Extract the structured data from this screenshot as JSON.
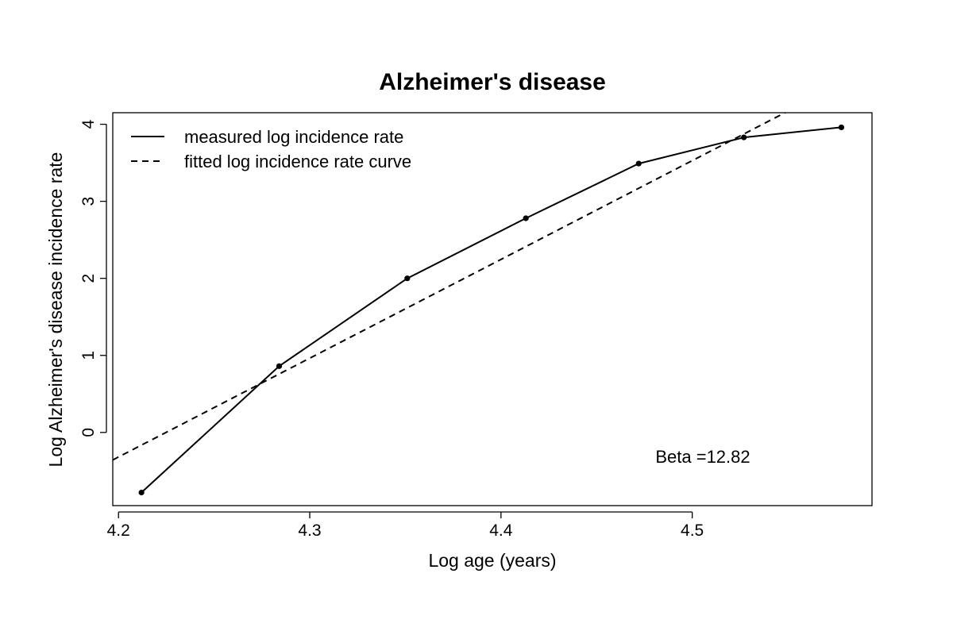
{
  "chart_data": {
    "type": "line",
    "title": "Alzheimer's disease",
    "xlabel": "Log age (years)",
    "ylabel": "Log Alzheimer's disease incidence rate",
    "xlim": [
      4.197,
      4.594
    ],
    "ylim": [
      -0.95,
      4.15
    ],
    "xticks": [
      4.2,
      4.3,
      4.4,
      4.5
    ],
    "xtick_labels": [
      "4.2",
      "4.3",
      "4.4",
      "4.5"
    ],
    "yticks": [
      0,
      1,
      2,
      3,
      4
    ],
    "ytick_labels": [
      "0",
      "1",
      "2",
      "3",
      "4"
    ],
    "grid": false,
    "legend_position": "top-left",
    "series": [
      {
        "name": "measured log incidence rate",
        "style": "solid-with-points",
        "x": [
          4.212,
          4.284,
          4.351,
          4.413,
          4.472,
          4.527,
          4.578
        ],
        "y": [
          -0.78,
          0.86,
          2.0,
          2.78,
          3.49,
          3.83,
          3.96
        ]
      },
      {
        "name": "fitted log incidence rate curve",
        "style": "dashed",
        "x": [
          4.197,
          4.594
        ],
        "y": [
          -0.357,
          4.733
        ]
      }
    ],
    "annotation": "Beta =12.82"
  }
}
